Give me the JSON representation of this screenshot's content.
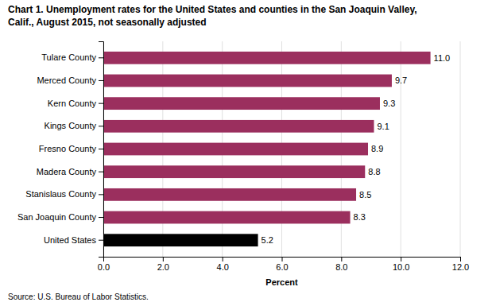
{
  "chart_data": {
    "type": "bar",
    "orientation": "horizontal",
    "title": "Chart 1. Unemployment rates for the United States and counties in the San Joaquin Valley,",
    "subtitle": "Calif., August  2015, not seasonally adjusted",
    "categories": [
      "United States",
      "San Joaquin County",
      "Stanislaus County",
      "Madera County",
      "Fresno County",
      "Kings County",
      "Kern County",
      "Merced County",
      "Tulare County"
    ],
    "values": [
      5.2,
      8.3,
      8.5,
      8.8,
      8.9,
      9.1,
      9.3,
      9.7,
      11.0
    ],
    "value_labels": [
      "5.2",
      "8.3",
      "8.5",
      "8.8",
      "8.9",
      "9.1",
      "9.3",
      "9.7",
      "11.0"
    ],
    "data_labels": true,
    "colors": [
      "#000000",
      "#9b2f5e",
      "#9b2f5e",
      "#9b2f5e",
      "#9b2f5e",
      "#9b2f5e",
      "#9b2f5e",
      "#9b2f5e",
      "#9b2f5e"
    ],
    "xlabel": "Percent",
    "xlim": [
      0,
      12.0
    ],
    "xticks": [
      {
        "value": 0.0,
        "label": "0.0"
      },
      {
        "value": 2.0,
        "label": "2.0"
      },
      {
        "value": 4.0,
        "label": "4.0"
      },
      {
        "value": 6.0,
        "label": "6.0"
      },
      {
        "value": 8.0,
        "label": "8.0"
      },
      {
        "value": 10.0,
        "label": "10.0"
      },
      {
        "value": 12.0,
        "label": "12.0"
      }
    ],
    "grid": true,
    "annotations": [
      "Source: U.S. Bureau of Labor Statistics."
    ]
  }
}
